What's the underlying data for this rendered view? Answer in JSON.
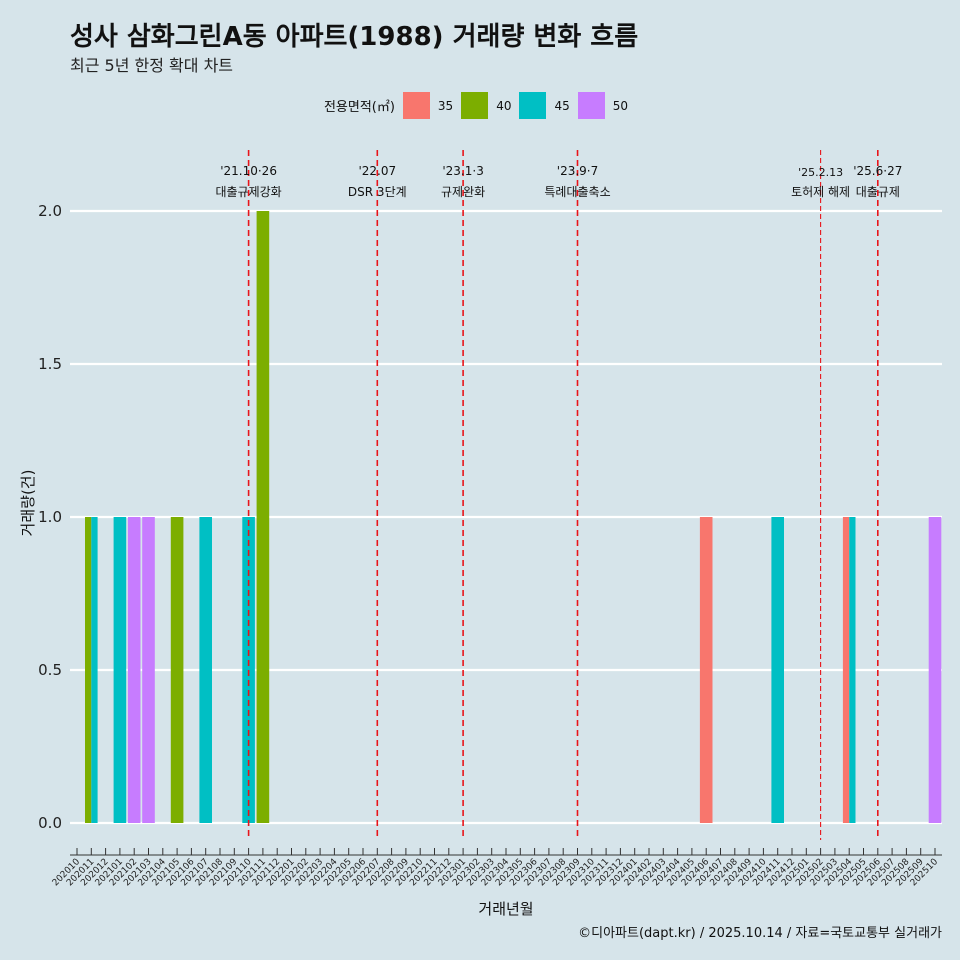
{
  "title": "성사 삼화그린A동 아파트(1988) 거래량 변화 흐름",
  "subtitle": "최근 5년 한정 확대 차트",
  "caption": "©디아파트(dapt.kr) / 2025.10.14 / 자료=국토교통부 실거래가",
  "legend": {
    "title": "전용면적(㎡)",
    "items": [
      {
        "label": "35",
        "color": "#F8766D"
      },
      {
        "label": "40",
        "color": "#7CAE00"
      },
      {
        "label": "45",
        "color": "#00BFC4"
      },
      {
        "label": "50",
        "color": "#C77CFF"
      }
    ]
  },
  "chart_data": {
    "type": "bar",
    "xlabel": "거래년월",
    "ylabel": "거래량(건)",
    "ylim": [
      0,
      2
    ],
    "yticks": [
      "0.0",
      "0.5",
      "1.0",
      "1.5",
      "2.0"
    ],
    "categories": [
      "202010",
      "202011",
      "202012",
      "202101",
      "202102",
      "202103",
      "202104",
      "202105",
      "202106",
      "202107",
      "202108",
      "202109",
      "202110",
      "202111",
      "202112",
      "202201",
      "202202",
      "202203",
      "202204",
      "202205",
      "202206",
      "202207",
      "202208",
      "202209",
      "202210",
      "202211",
      "202212",
      "202301",
      "202302",
      "202303",
      "202304",
      "202305",
      "202306",
      "202307",
      "202308",
      "202309",
      "202310",
      "202311",
      "202312",
      "202401",
      "202402",
      "202403",
      "202404",
      "202405",
      "202406",
      "202407",
      "202408",
      "202409",
      "202410",
      "202411",
      "202412",
      "202501",
      "202502",
      "202503",
      "202504",
      "202505",
      "202506",
      "202507",
      "202508",
      "202509",
      "202510"
    ],
    "bars": [
      {
        "month": "202011",
        "size": "40",
        "value": 1
      },
      {
        "month": "202011",
        "size": "45",
        "value": 1
      },
      {
        "month": "202101",
        "size": "45",
        "value": 1
      },
      {
        "month": "202102",
        "size": "50",
        "value": 1
      },
      {
        "month": "202103",
        "size": "50",
        "value": 1
      },
      {
        "month": "202105",
        "size": "40",
        "value": 1
      },
      {
        "month": "202107",
        "size": "45",
        "value": 1
      },
      {
        "month": "202110",
        "size": "45",
        "value": 1
      },
      {
        "month": "202111",
        "size": "40",
        "value": 2
      },
      {
        "month": "202406",
        "size": "35",
        "value": 1
      },
      {
        "month": "202411",
        "size": "45",
        "value": 1
      },
      {
        "month": "202504",
        "size": "35",
        "value": 1
      },
      {
        "month": "202504",
        "size": "45",
        "value": 1
      },
      {
        "month": "202510",
        "size": "50",
        "value": 1
      }
    ],
    "events": [
      {
        "month": "202110",
        "date": "'21.10·26",
        "text": "대출규제강화",
        "style": "major"
      },
      {
        "month": "202207",
        "date": "'22.07",
        "text": "DSR 3단계",
        "style": "major"
      },
      {
        "month": "202301",
        "date": "'23.1·3",
        "text": "규제완화",
        "style": "major"
      },
      {
        "month": "202309",
        "date": "'23.9·7",
        "text": "특례대출축소",
        "style": "major"
      },
      {
        "month": "202502",
        "date": "'25.2.13",
        "text": "토허제 해제",
        "style": "minor"
      },
      {
        "month": "202506",
        "date": "'25.6·27",
        "text": "대출규제",
        "style": "major"
      }
    ]
  }
}
